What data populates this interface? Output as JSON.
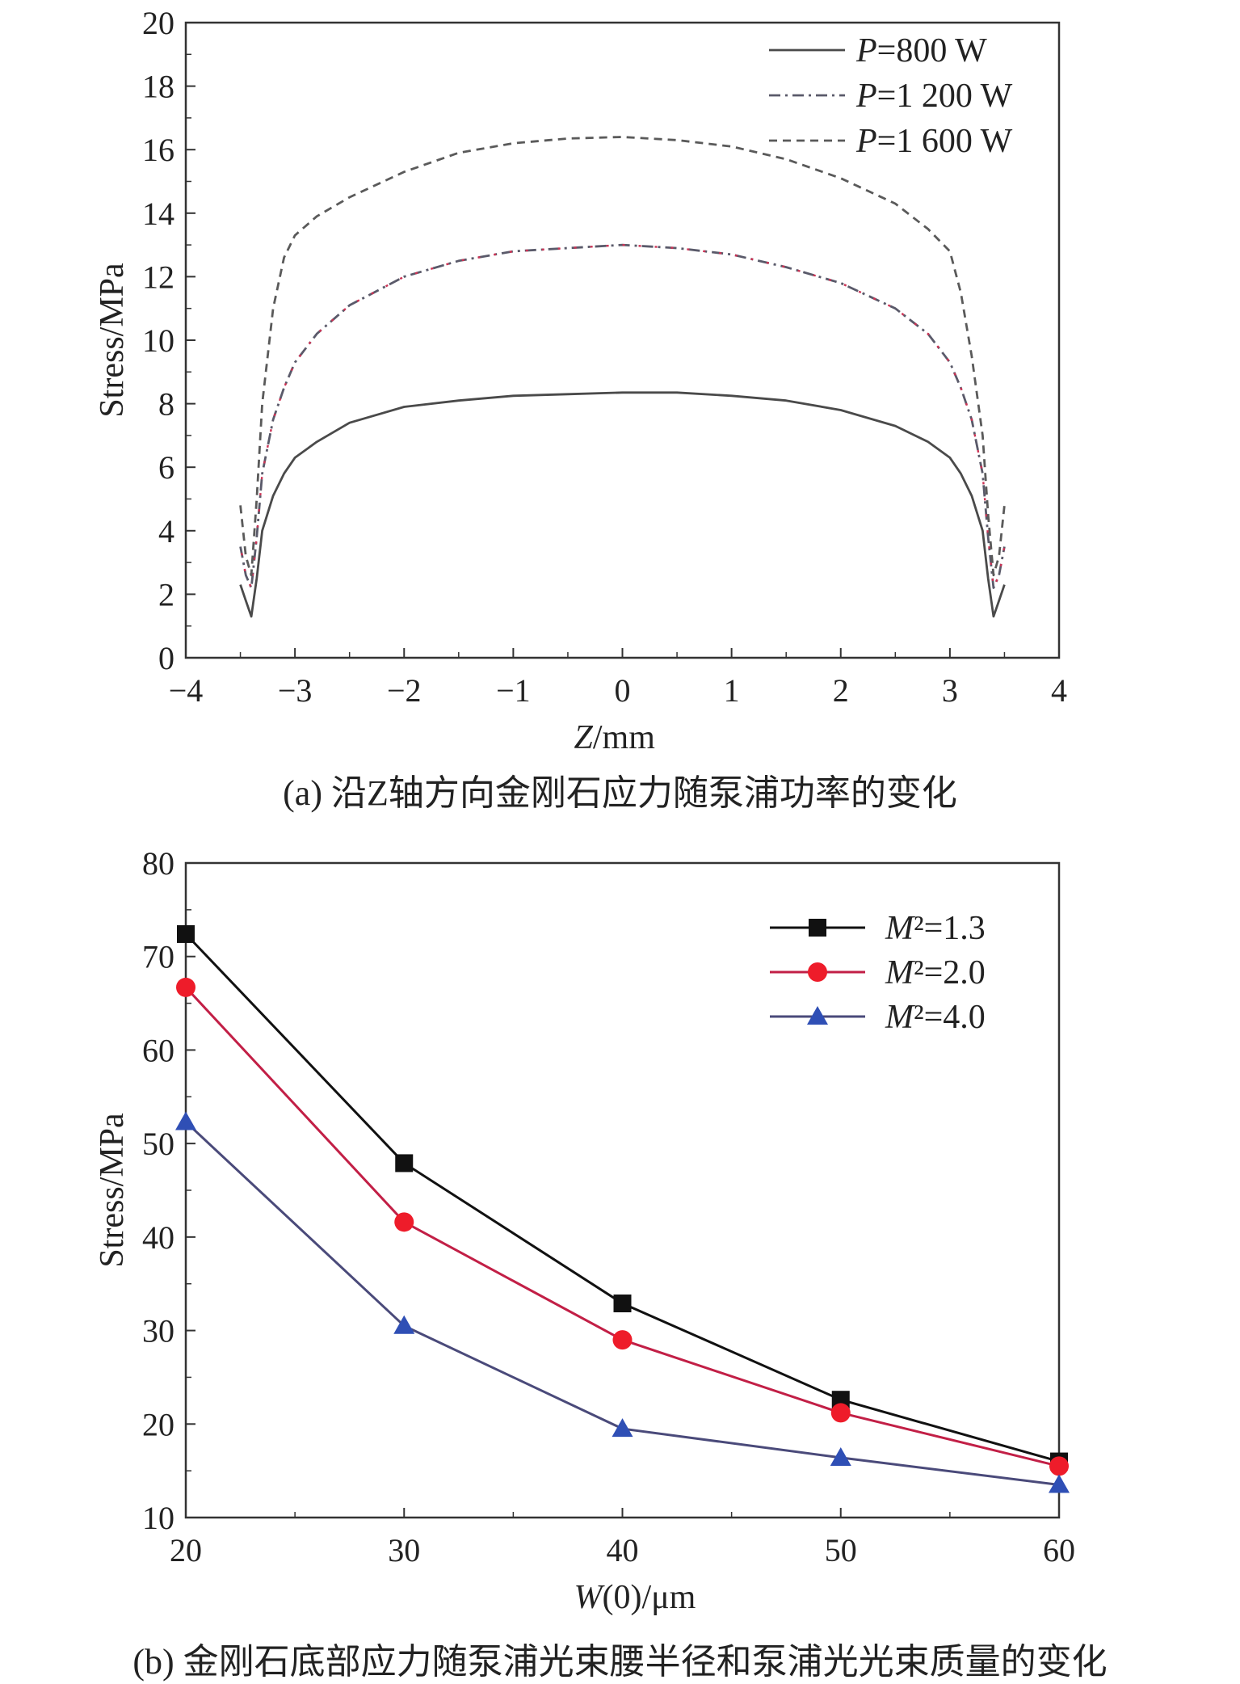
{
  "chart_data": [
    {
      "type": "line",
      "caption": "(a) 沿Z轴方向金刚石应力随泵浦功率的变化",
      "xlabel": "Z/mm",
      "ylabel": "Stress/MPa",
      "xlim": [
        -4,
        4
      ],
      "ylim": [
        0,
        20
      ],
      "xticks": [
        -4,
        -3,
        -2,
        -1,
        0,
        1,
        2,
        3,
        4
      ],
      "yticks": [
        0,
        2,
        4,
        6,
        8,
        10,
        12,
        14,
        16,
        18,
        20
      ],
      "legend_position": "top-right",
      "grid": false,
      "series": [
        {
          "name": "P=800 W",
          "style": "solid",
          "color": "#4a4a4a",
          "x": [
            -3.5,
            -3.45,
            -3.4,
            -3.35,
            -3.3,
            -3.2,
            -3.1,
            -3.0,
            -2.8,
            -2.5,
            -2.0,
            -1.5,
            -1.0,
            -0.5,
            0.0,
            0.5,
            1.0,
            1.5,
            2.0,
            2.5,
            2.8,
            3.0,
            3.1,
            3.2,
            3.3,
            3.35,
            3.4,
            3.45,
            3.5
          ],
          "y": [
            2.3,
            1.8,
            1.3,
            2.5,
            4.0,
            5.1,
            5.8,
            6.3,
            6.8,
            7.4,
            7.9,
            8.1,
            8.25,
            8.3,
            8.35,
            8.35,
            8.25,
            8.1,
            7.8,
            7.3,
            6.8,
            6.3,
            5.8,
            5.1,
            4.0,
            2.5,
            1.3,
            1.8,
            2.3
          ]
        },
        {
          "name": "P=1 200 W",
          "style": "dashdot",
          "color": "#5a5a6a",
          "accent_color": "#cc3355",
          "x": [
            -3.5,
            -3.45,
            -3.4,
            -3.35,
            -3.3,
            -3.2,
            -3.1,
            -3.0,
            -2.8,
            -2.5,
            -2.0,
            -1.5,
            -1.0,
            -0.5,
            0.0,
            0.5,
            1.0,
            1.5,
            2.0,
            2.5,
            2.8,
            3.0,
            3.1,
            3.2,
            3.3,
            3.35,
            3.4,
            3.45,
            3.5
          ],
          "y": [
            3.5,
            2.6,
            2.2,
            3.8,
            5.8,
            7.5,
            8.5,
            9.3,
            10.2,
            11.1,
            12.0,
            12.5,
            12.8,
            12.9,
            13.0,
            12.9,
            12.7,
            12.3,
            11.8,
            11.0,
            10.2,
            9.3,
            8.5,
            7.5,
            5.8,
            3.8,
            2.2,
            2.6,
            3.5
          ]
        },
        {
          "name": "P=1 600 W",
          "style": "dashed",
          "color": "#5a5a5a",
          "x": [
            -3.5,
            -3.45,
            -3.4,
            -3.35,
            -3.3,
            -3.2,
            -3.1,
            -3.0,
            -2.8,
            -2.5,
            -2.0,
            -1.5,
            -1.0,
            -0.5,
            0.0,
            0.5,
            1.0,
            1.5,
            2.0,
            2.5,
            2.8,
            3.0,
            3.1,
            3.2,
            3.3,
            3.35,
            3.4,
            3.45,
            3.5
          ],
          "y": [
            4.8,
            3.2,
            2.6,
            5.0,
            8.0,
            11.0,
            12.6,
            13.3,
            13.9,
            14.5,
            15.3,
            15.9,
            16.2,
            16.35,
            16.4,
            16.3,
            16.1,
            15.7,
            15.1,
            14.3,
            13.5,
            12.8,
            11.5,
            9.5,
            7.0,
            4.5,
            2.6,
            3.2,
            4.8
          ]
        }
      ]
    },
    {
      "type": "line",
      "caption": "(b) 金刚石底部应力随泵浦光束腰半径和泵浦光光束质量的变化",
      "xlabel": "W(0)/μm",
      "ylabel": "Stress/MPa",
      "xlim": [
        20,
        60
      ],
      "ylim": [
        10,
        80
      ],
      "xticks": [
        20,
        30,
        40,
        50,
        60
      ],
      "yticks": [
        10,
        20,
        30,
        40,
        50,
        60,
        70,
        80
      ],
      "legend_position": "top-right",
      "grid": false,
      "categories": [
        20,
        30,
        40,
        50,
        60
      ],
      "series": [
        {
          "name": "M²=1.3",
          "marker": "square",
          "color": "#111111",
          "marker_color": "#111111",
          "values": [
            72.4,
            47.9,
            32.9,
            22.6,
            16.0
          ]
        },
        {
          "name": "M²=2.0",
          "marker": "circle",
          "color": "#c21f46",
          "marker_color": "#ee1c2a",
          "values": [
            66.7,
            41.6,
            29.0,
            21.2,
            15.5
          ]
        },
        {
          "name": "M²=4.0",
          "marker": "triangle",
          "color": "#4a4a7a",
          "marker_color": "#2f4fb5",
          "values": [
            52.3,
            30.5,
            19.5,
            16.4,
            13.5
          ]
        }
      ]
    }
  ]
}
